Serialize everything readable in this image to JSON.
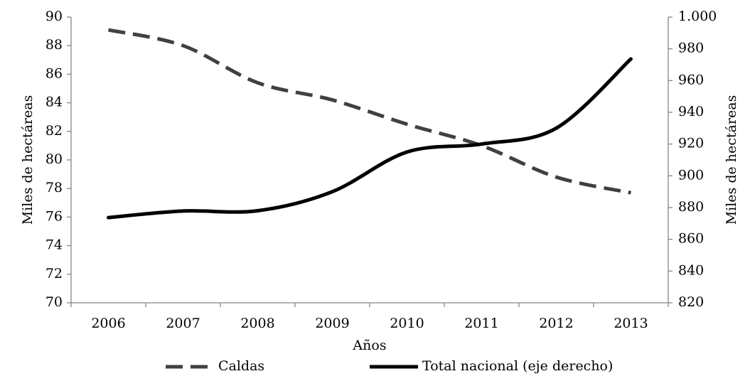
{
  "chart_data": {
    "type": "line",
    "categories": [
      "2006",
      "2007",
      "2008",
      "2009",
      "2010",
      "2011",
      "2012",
      "2013"
    ],
    "xlabel": "Años",
    "ylabel": "Miles de hectáreas",
    "y2label": "Miles de hectáreas",
    "ylim": [
      70,
      90
    ],
    "yticks": [
      70,
      72,
      74,
      76,
      78,
      80,
      82,
      84,
      86,
      88,
      90
    ],
    "y2lim": [
      820,
      1000
    ],
    "y2ticks": [
      820,
      840,
      860,
      880,
      900,
      920,
      940,
      960,
      980,
      {
        "value": 1000,
        "label": "1.000"
      }
    ],
    "legend": "bottom",
    "series": [
      {
        "name": "Caldas",
        "color": "#404040",
        "dash": true,
        "values": [
          89.1,
          88.0,
          85.4,
          84.2,
          82.5,
          81.0,
          78.8,
          77.7
        ]
      },
      {
        "name": "Total nacional (eje derecho)",
        "color": "#000000",
        "dash": false,
        "axis": "y2",
        "values": [
          873.7,
          877.8,
          878.0,
          890.0,
          915.0,
          920.0,
          930.0,
          973.6
        ]
      }
    ]
  }
}
